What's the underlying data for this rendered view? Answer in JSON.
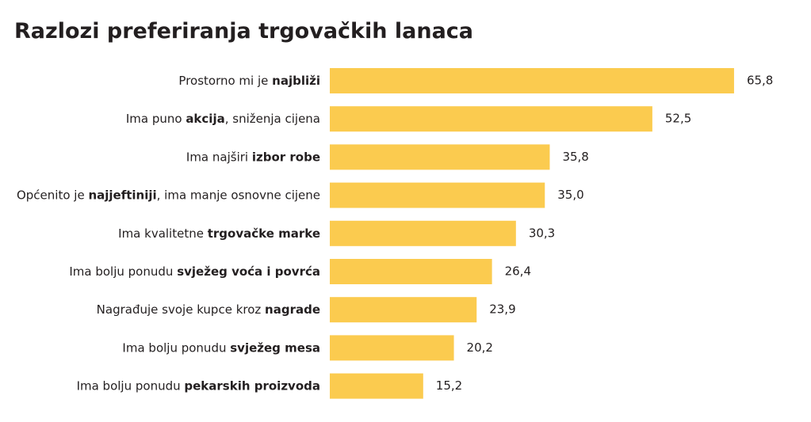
{
  "chart_data": {
    "type": "bar",
    "orientation": "horizontal",
    "title": "Razlozi preferiranja trgovačkih lanaca",
    "categories": [
      [
        "Prostorno mi je ",
        "najbliži"
      ],
      [
        "Ima puno ",
        "akcija",
        ", sniženja cijena"
      ],
      [
        "Ima najširi ",
        "izbor robe"
      ],
      [
        "Općenito je ",
        "najjeftiniji",
        ", ima manje osnovne cijene"
      ],
      [
        "Ima kvalitetne ",
        "trgovačke marke"
      ],
      [
        "Ima bolju ponudu ",
        "svježeg voća i povrća"
      ],
      [
        "Nagrađuje svoje kupce kroz ",
        "nagrade"
      ],
      [
        "Ima bolju ponudu ",
        "svježeg mesa"
      ],
      [
        "Ima bolju ponudu ",
        "pekarskih proizvoda"
      ]
    ],
    "values": [
      65.8,
      52.5,
      35.8,
      35.0,
      30.3,
      26.4,
      23.9,
      20.2,
      15.2
    ],
    "value_labels": [
      "65,8",
      "52,5",
      "35,8",
      "35,0",
      "30,3",
      "26,4",
      "23,9",
      "20,2",
      "15,2"
    ],
    "color": "#fbcb4f"
  }
}
